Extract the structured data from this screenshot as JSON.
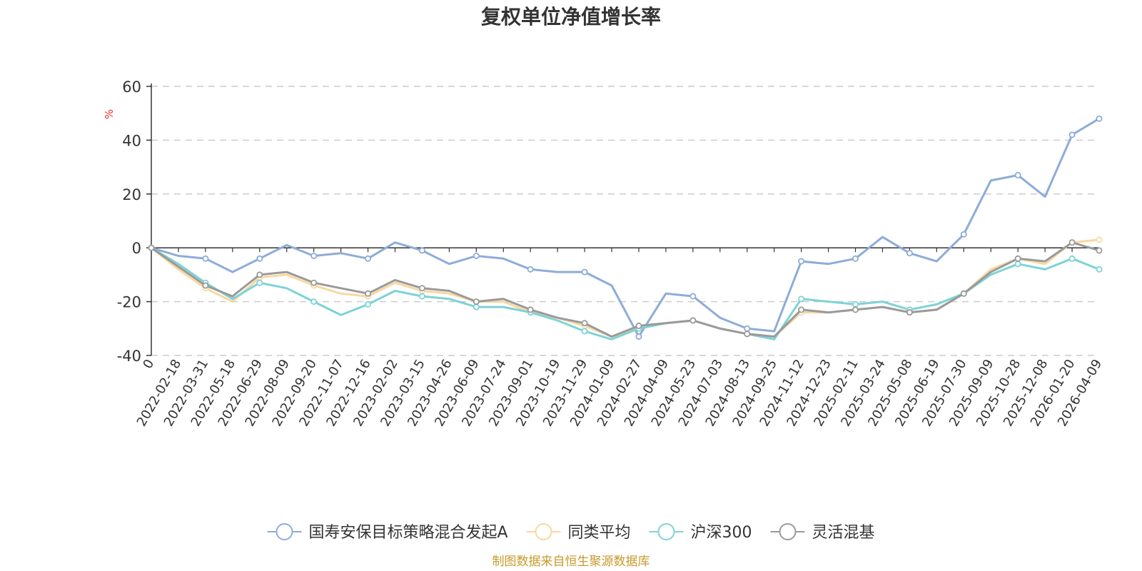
{
  "chart_data": {
    "type": "line",
    "title": "复权单位净值增长率",
    "ylabel": "%",
    "ylim": [
      -40,
      60
    ],
    "yticks": [
      60,
      40,
      20,
      0,
      -20,
      -40
    ],
    "grid": true,
    "legend_position": "bottom",
    "x_tick_labels": [
      "0",
      "2022-02-18",
      "2022-03-31",
      "2022-05-18",
      "2022-06-29",
      "2022-08-09",
      "2022-09-20",
      "2022-11-07",
      "2022-12-16",
      "2023-02-02",
      "2023-03-15",
      "2023-04-26",
      "2023-06-09",
      "2023-07-24",
      "2023-09-01",
      "2023-10-19",
      "2023-11-29",
      "2024-01-09",
      "2024-02-27",
      "2024-04-09",
      "2024-05-23",
      "2024-07-03",
      "2024-08-13",
      "2024-09-25",
      "2024-11-12",
      "2024-12-23",
      "2025-02-11",
      "2025-03-24",
      "2025-05-08",
      "2025-06-19",
      "2025-07-30",
      "2025-09-09",
      "2025-10-28",
      "2025-12-08",
      "2026-01-20",
      "2026-04-09"
    ],
    "x": [
      "0",
      "2022-02-18",
      "2022-03-31",
      "2022-05-18",
      "2022-06-29",
      "2022-08-09",
      "2022-09-20",
      "2022-11-07",
      "2022-12-16",
      "2023-02-02",
      "2023-03-15",
      "2023-04-26",
      "2023-06-09",
      "2023-07-24",
      "2023-09-01",
      "2023-10-19",
      "2023-11-29",
      "2024-01-09",
      "2024-02-27",
      "2024-04-09",
      "2024-05-23",
      "2024-07-03",
      "2024-08-13",
      "2024-09-25",
      "2024-11-12",
      "2024-12-23",
      "2025-02-11",
      "2025-03-24",
      "2025-05-08",
      "2025-06-19",
      "2025-07-30",
      "2025-09-09",
      "2025-10-28",
      "2025-12-08",
      "2026-01-20",
      "2026-04-09"
    ],
    "series": [
      {
        "name": "国寿安保目标策略混合发起A",
        "color": "#8eacd8",
        "values": [
          0,
          -3,
          -4,
          -9,
          -4,
          1,
          -3,
          -2,
          -4,
          2,
          -1,
          -6,
          -3,
          -4,
          -8,
          -9,
          -9,
          -14,
          -33,
          -17,
          -18,
          -26,
          -30,
          -31,
          -5,
          -6,
          -4,
          4,
          -2,
          -5,
          5,
          25,
          27,
          19,
          42,
          48
        ]
      },
      {
        "name": "同类平均",
        "color": "#f8d8a0",
        "values": [
          0,
          -8,
          -15,
          -20,
          -11,
          -10,
          -14,
          -17,
          -18,
          -13,
          -16,
          -17,
          -20,
          -20,
          -24,
          -26,
          -29,
          -33,
          -30,
          -28,
          -27,
          -30,
          -32,
          -33,
          -24,
          -24,
          -23,
          -22,
          -24,
          -23,
          -17,
          -8,
          -4,
          -6,
          2,
          3
        ]
      },
      {
        "name": "沪深300",
        "color": "#7ed3d6",
        "values": [
          0,
          -6,
          -13,
          -19,
          -13,
          -15,
          -20,
          -25,
          -21,
          -16,
          -18,
          -19,
          -22,
          -22,
          -24,
          -27,
          -31,
          -34,
          -30,
          -28,
          -27,
          -30,
          -32,
          -34,
          -19,
          -20,
          -21,
          -20,
          -23,
          -21,
          -17,
          -10,
          -6,
          -8,
          -4,
          -8
        ]
      },
      {
        "name": "灵活混基",
        "color": "#9a9a9a",
        "values": [
          0,
          -7,
          -14,
          -18,
          -10,
          -9,
          -13,
          -15,
          -17,
          -12,
          -15,
          -16,
          -20,
          -19,
          -23,
          -26,
          -28,
          -33,
          -29,
          -28,
          -27,
          -30,
          -32,
          -33,
          -23,
          -24,
          -23,
          -22,
          -24,
          -23,
          -17,
          -9,
          -4,
          -5,
          2,
          -1
        ]
      }
    ]
  },
  "source_note": "制图数据来自恒生聚源数据库",
  "colors": {
    "axis": "#333333",
    "grid": "#cccccc",
    "unit": "#e8302c",
    "source": "#c89a2e"
  }
}
